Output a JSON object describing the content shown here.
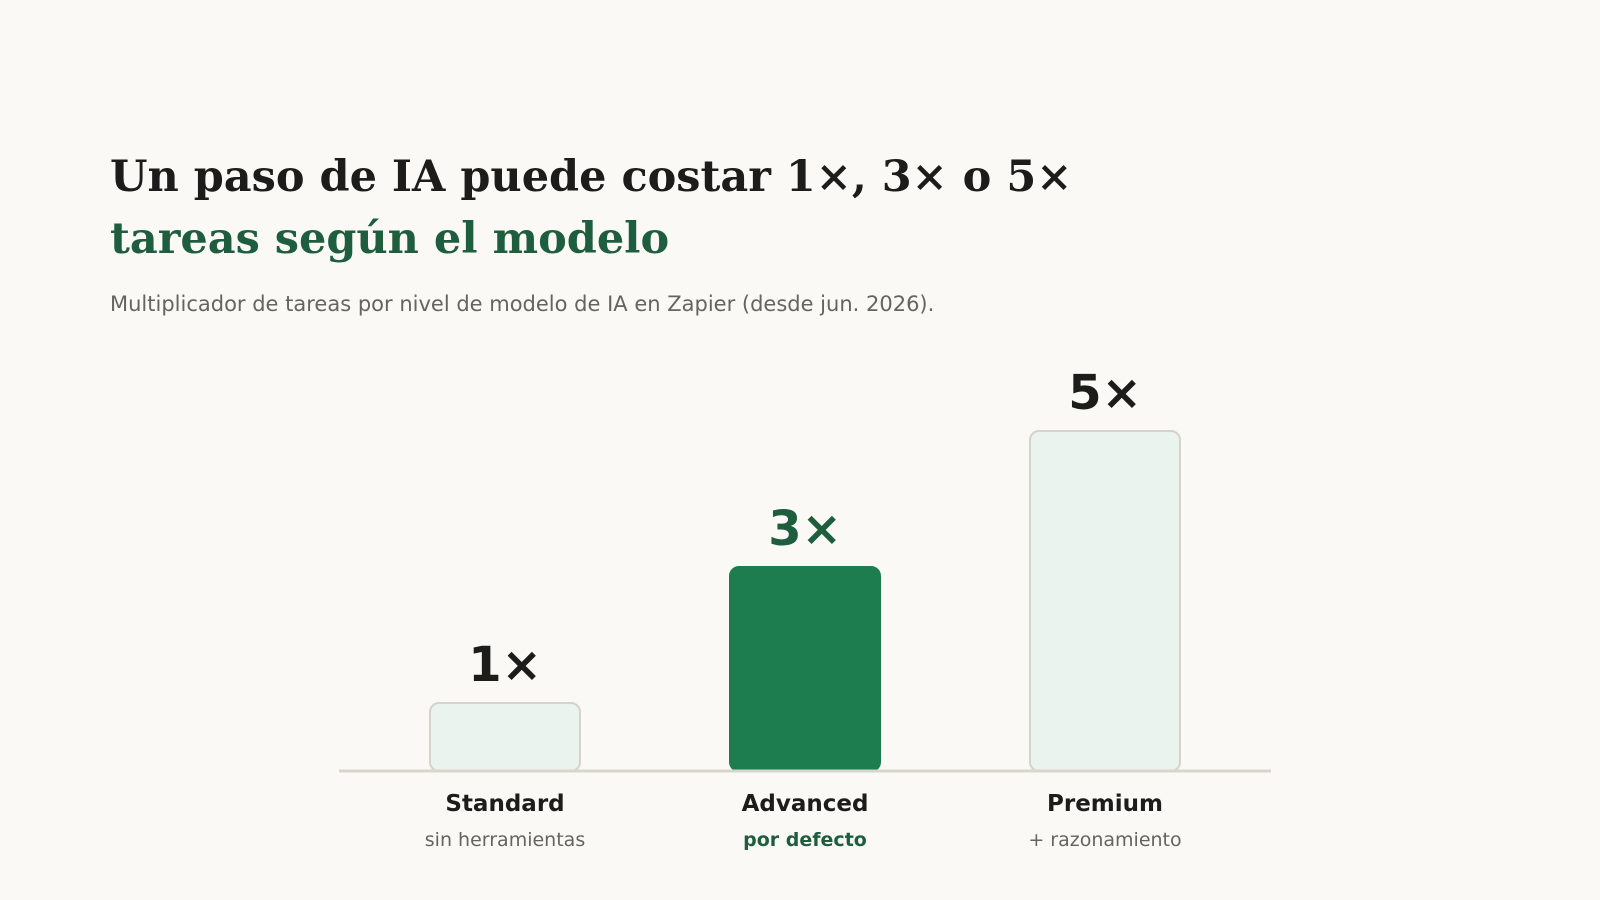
{
  "header": {
    "title_line1": "Un paso de IA puede costar 1×, 3× o 5×",
    "title_line2": "tareas según el modelo",
    "subtitle": "Multiplicador de tareas por nivel de modelo de IA en Zapier (desde jun. 2026)."
  },
  "colors": {
    "accent": "#1e7d4f",
    "accent_text": "#1e5e3e",
    "bar_light_fill": "#ebf3ee",
    "bar_light_stroke": "#d6d3cb",
    "baseline": "#d8d5cc",
    "text_dark": "#1c1c1a",
    "text_muted": "#66645e"
  },
  "chart_data": {
    "type": "bar",
    "categories": [
      "Standard",
      "Advanced",
      "Premium"
    ],
    "notes": [
      "sin herramientas",
      "por defecto",
      "+ razonamiento"
    ],
    "values": [
      1,
      3,
      5
    ],
    "value_labels": [
      "1×",
      "3×",
      "5×"
    ],
    "highlight_index": 1,
    "ylim": [
      0,
      5
    ],
    "grid": false,
    "legend": "none"
  }
}
